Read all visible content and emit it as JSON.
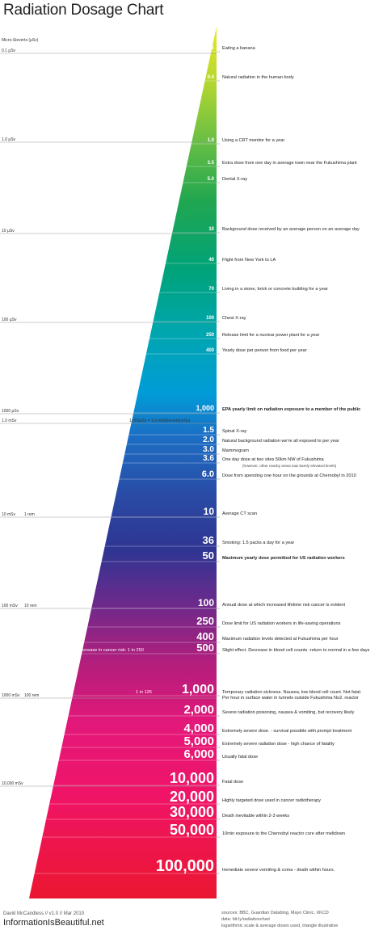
{
  "title": "Radiation Dosage Chart",
  "unit_header": "Micro-Sieverts (μSv)",
  "footer": {
    "author": "David McCandless // v1.0 // Mar 2010",
    "site": "InformationIsBeautiful.net",
    "sources": "sources: BBC, Guardian Datablog, Mayo Clinic, XKCD",
    "data": "data: bit.ly/radiationchart",
    "note": "logarithmic scale & average doses used, triangle illustrative"
  },
  "colors": {
    "gradient": [
      "#e8e82a",
      "#8cc63f",
      "#2ea84c",
      "#00a27a",
      "#00a4b2",
      "#009ad8",
      "#1f5cb0",
      "#2a3e96",
      "#5a2a8a",
      "#b01e78",
      "#e51c7a",
      "#f01464",
      "#ea1230"
    ]
  },
  "chart_data": {
    "type": "table",
    "title": "Radiation Dosage Chart",
    "scale": "logarithmic",
    "reference_ticks": [
      {
        "text": "0.1 μSv"
      },
      {
        "text": "1.0 μSv"
      },
      {
        "text": "10 μSv"
      },
      {
        "text": "100 μSv"
      },
      {
        "text": "1000 μSv"
      },
      {
        "text": "1.0 mSv"
      },
      {
        "text": "10 mSv",
        "text2": "1 rem"
      },
      {
        "text": "100 mSv",
        "text2": "10 rem"
      },
      {
        "text": "1000 mSv",
        "text2": "100 rem"
      },
      {
        "text": "10,000 mSv"
      }
    ],
    "conversion_note": "1,000μSv = 1.0 milliSieverts(mSv)",
    "cancer_risk": [
      {
        "label": "Lifetime increase in cancer risk: 1 in 250"
      },
      {
        "label": "1 in 125"
      }
    ],
    "entries": [
      {
        "value": "0.1",
        "desc": "Eating a banana"
      },
      {
        "value": "0.4",
        "desc": "Natural radiation in the human body"
      },
      {
        "value": "1.0",
        "desc": "Using a CRT monitor for a year"
      },
      {
        "value": "3.5",
        "desc": "Extra dose from one day in average town near the Fukushima plant"
      },
      {
        "value": "5.0",
        "desc": "Dental X-ray"
      },
      {
        "value": "10",
        "desc": "Background dose received by an average person on an average day"
      },
      {
        "value": "40",
        "desc": "Flight from New York to LA"
      },
      {
        "value": "70",
        "desc": "Living in a stone, brick or concrete building for a year"
      },
      {
        "value": "100",
        "desc": "Chest X-ray"
      },
      {
        "value": "250",
        "desc": "Release limit for a nuclear power plant for a year"
      },
      {
        "value": "400",
        "desc": "Yearly dose per person from food per year"
      },
      {
        "value": "1,000",
        "desc": "EPA yearly limit on radiation exposure to a member of the public"
      },
      {
        "value": "1.5",
        "desc": "Spinal X-ray"
      },
      {
        "value": "2.0",
        "desc": "Natural background radiation we're all exposed to per year"
      },
      {
        "value": "3.0",
        "desc": "Mammogram"
      },
      {
        "value": "3.6",
        "desc": "One day dose at two sites 50km NW of Fukushima",
        "note": "(however, other nearby areas saw barely elevated levels)"
      },
      {
        "value": "6.0",
        "desc": "Dose from spending one hour on the grounds at Chernobyl in 2010"
      },
      {
        "value": "10",
        "desc": "Average CT scan"
      },
      {
        "value": "36",
        "desc": "Smoking: 1.5 packs a day for a year"
      },
      {
        "value": "50",
        "desc": "Maximum yearly dose permitted for US radiation workers"
      },
      {
        "value": "100",
        "desc": "Annual dose at which increased lifetime risk cancer is evident"
      },
      {
        "value": "250",
        "desc": "Dose limit for US radiation workers in life-saving operations"
      },
      {
        "value": "400",
        "desc": "Maximum radiation levels detected at Fukushima per hour"
      },
      {
        "value": "500",
        "desc": "Slight effect. Decrease in blood cell counts -return to normal in a few days"
      },
      {
        "value": "1,000",
        "desc": "Temporary radiation sickness. Nausea, low blood cell count. Not fatal.",
        "desc2": "Per hour in surface water in tunnels outside Fukushima No2. reactor"
      },
      {
        "value": "2,000",
        "desc": "Severe radiation poisoning, nausea & vomiting, but recovery likely"
      },
      {
        "value": "4,000",
        "desc": "Extremely severe dose. - survival possible with prompt treatment"
      },
      {
        "value": "5,000",
        "desc": "Extremely severe radiation dose - high chance of fatality"
      },
      {
        "value": "6,000",
        "desc": "Usually fatal dose"
      },
      {
        "value": "10,000",
        "desc": "Fatal dose"
      },
      {
        "value": "20,000",
        "desc": "Highly targeted dose used in cancer radiotherapy"
      },
      {
        "value": "30,000",
        "desc": "Death inevitable within 2-3 weeks"
      },
      {
        "value": "50,000",
        "desc": "10min exposure to the Chernobyl reactor core after meltdown"
      },
      {
        "value": "100,000",
        "desc": "Immediate severe vomiting & coma - death within hours."
      }
    ]
  }
}
